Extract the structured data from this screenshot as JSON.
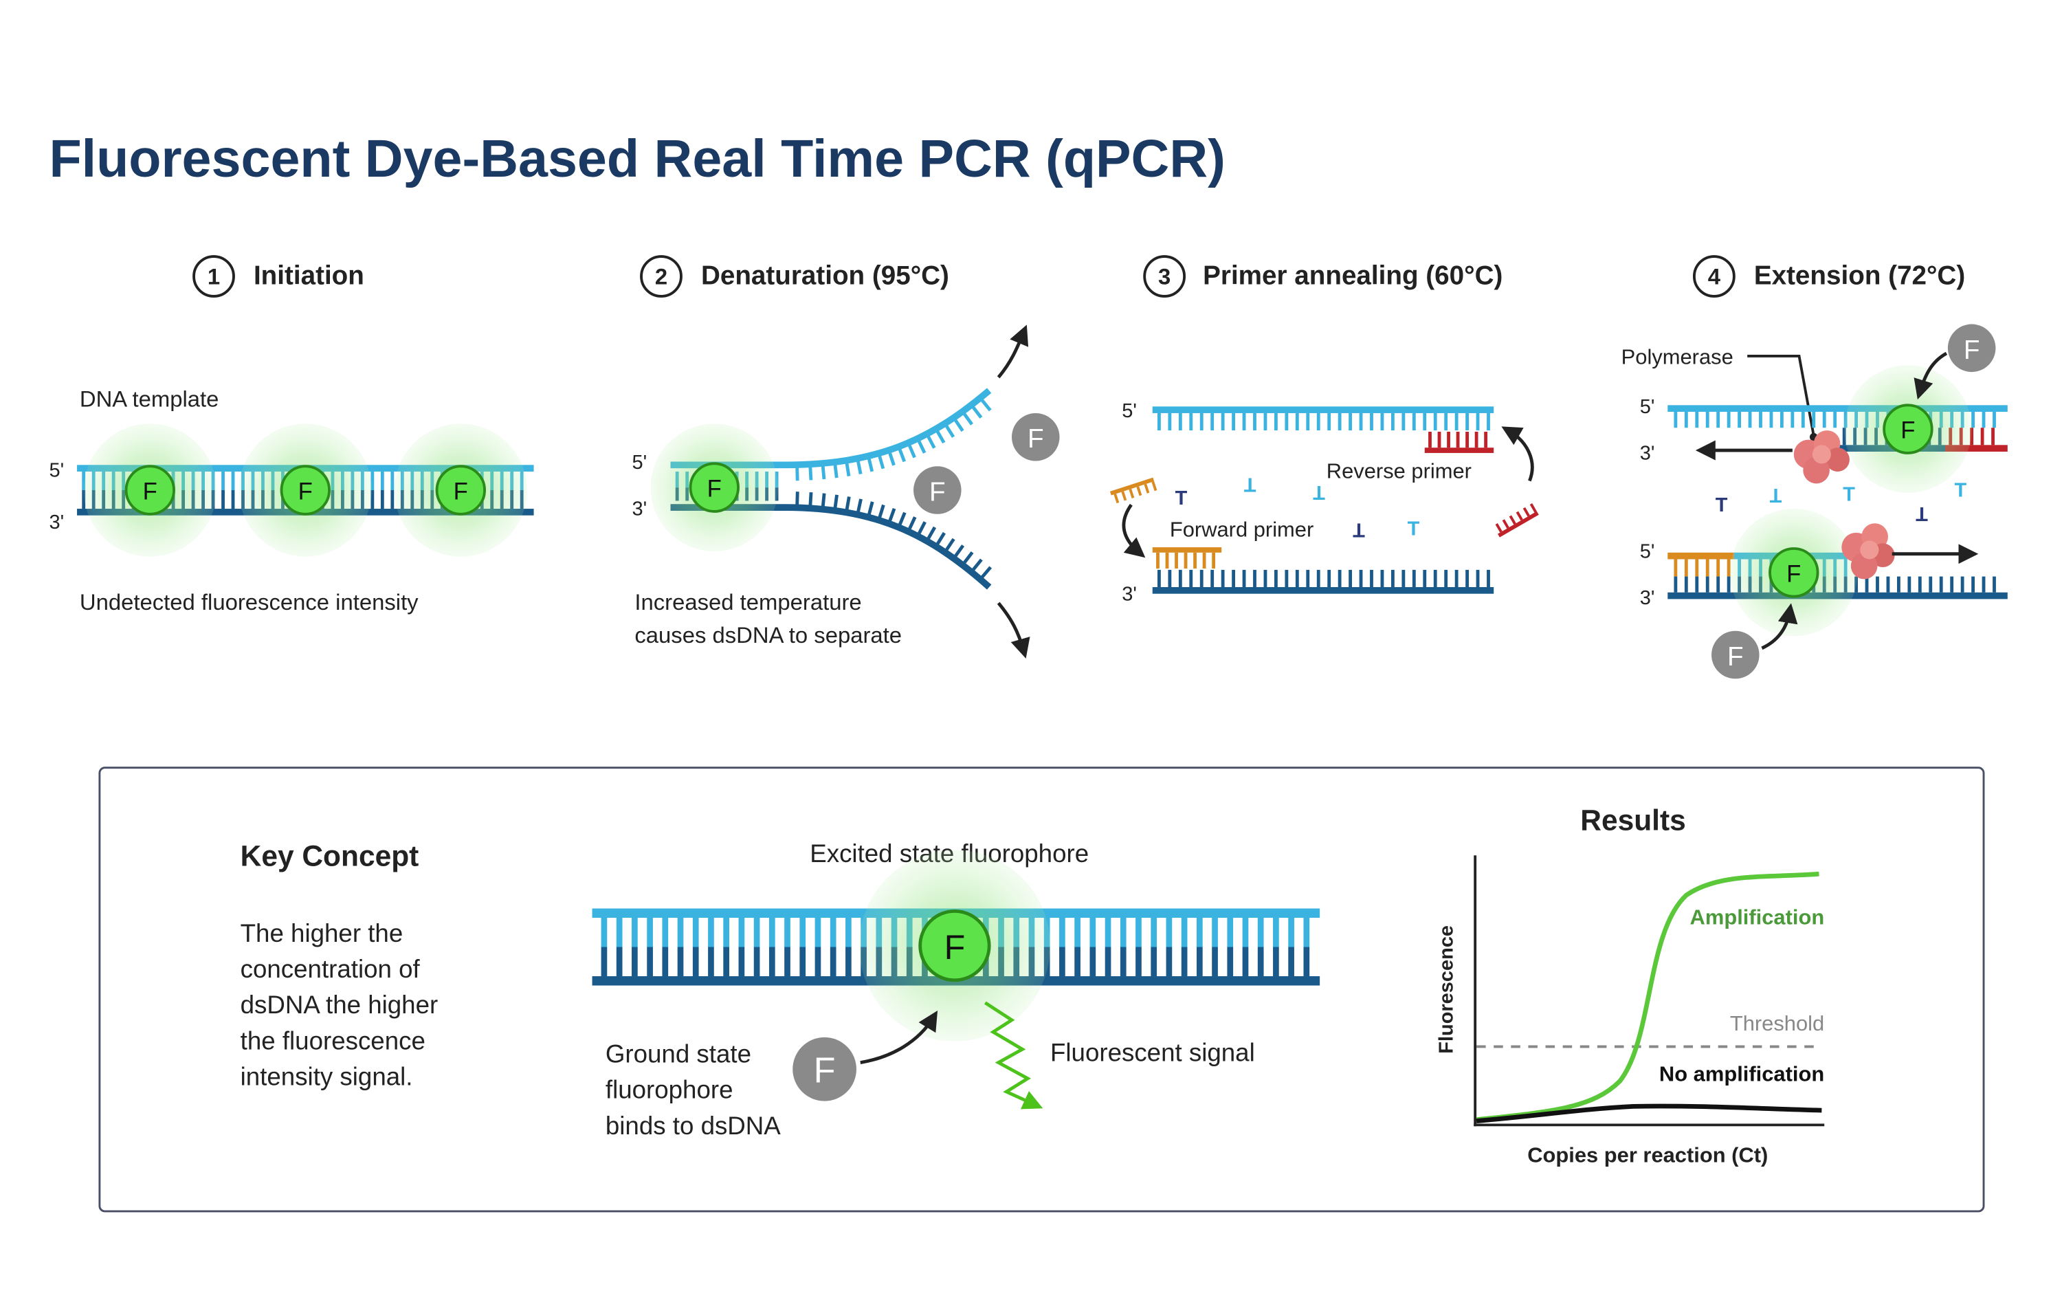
{
  "title": "Fluorescent Dye-Based Real Time PCR (qPCR)",
  "colors": {
    "title": "#1b3a63",
    "strand_light": "#3ab3e0",
    "strand_dark": "#1a5a8a",
    "fluor_green": "#5ee24a",
    "glow": "#7de06a",
    "dye_gray": "#8a8a8a",
    "forward_primer": "#d98b1f",
    "reverse_primer": "#c0222a",
    "polymerase": "#e57a7a",
    "curve_green": "#5bc83a",
    "threshold": "#888888"
  },
  "fluor_letter": "F",
  "steps": [
    {
      "number": "1",
      "title": "Initiation",
      "temp": ""
    },
    {
      "number": "2",
      "title": "Denaturation",
      "temp": "(95°C)"
    },
    {
      "number": "3",
      "title": "Primer annealing",
      "temp": "(60°C)"
    },
    {
      "number": "4",
      "title": "Extension",
      "temp": "(72°C)"
    }
  ],
  "labels": {
    "five_prime": "5'",
    "three_prime": "3'",
    "dna_template": "DNA template",
    "undetected": "Undetected fluorescence intensity",
    "denat_line1": "Increased temperature",
    "denat_line2": "causes dsDNA to separate",
    "reverse_primer": "Reverse primer",
    "forward_primer": "Forward primer",
    "polymerase": "Polymerase"
  },
  "key_concept": {
    "heading": "Key Concept",
    "lines": [
      "The higher the",
      "concentration of",
      "dsDNA the higher",
      "the fluorescence",
      "intensity signal."
    ],
    "excited": "Excited state fluorophore",
    "ground_lines": [
      "Ground state",
      "fluorophore",
      "binds to dsDNA"
    ],
    "signal": "Fluorescent signal"
  },
  "results": {
    "title": "Results",
    "ylabel": "Fluorescence",
    "xlabel": "Copies per reaction (Ct)",
    "amplification": "Amplification",
    "threshold": "Threshold",
    "no_amplification": "No amplification"
  }
}
